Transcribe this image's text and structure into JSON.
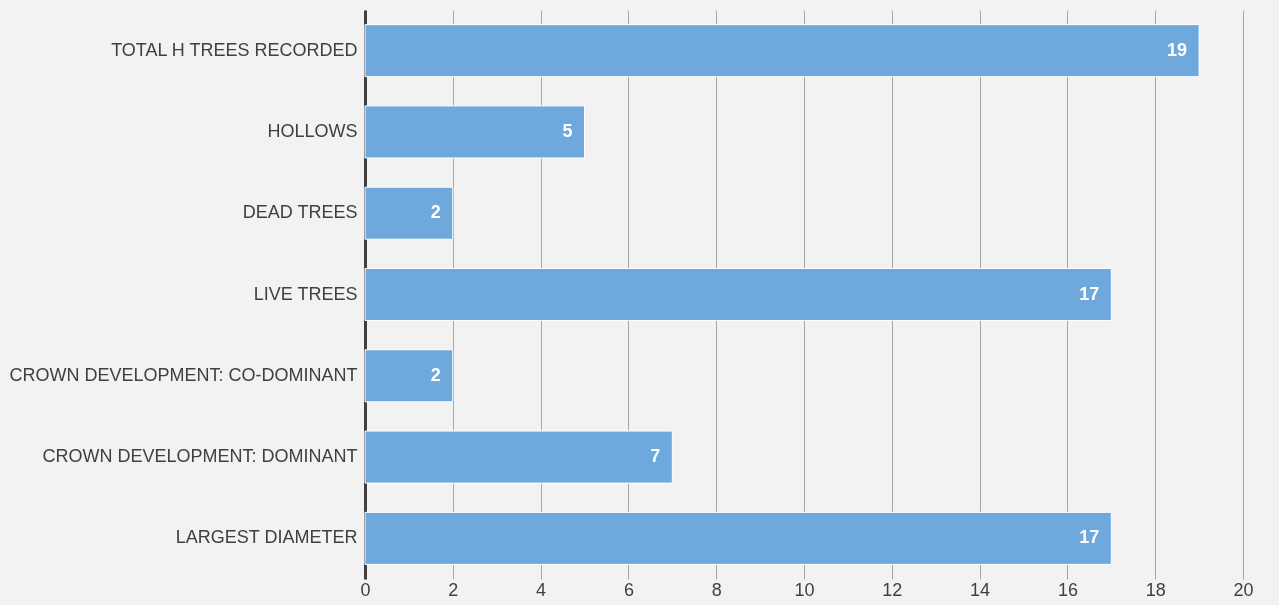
{
  "chart_data": {
    "type": "bar",
    "orientation": "horizontal",
    "categories": [
      "TOTAL H TREES RECORDED",
      "HOLLOWS",
      "DEAD TREES",
      "LIVE TREES",
      "CROWN DEVELOPMENT: CO-DOMINANT",
      "CROWN DEVELOPMENT: DOMINANT",
      "LARGEST DIAMETER"
    ],
    "values": [
      19,
      5,
      2,
      17,
      2,
      7,
      17
    ],
    "color": "#6fa8dc",
    "xlim": [
      0,
      20
    ],
    "xticks": [
      0,
      2,
      4,
      6,
      8,
      10,
      12,
      14,
      16,
      18,
      20
    ],
    "grid": "x",
    "data_labels": true
  }
}
